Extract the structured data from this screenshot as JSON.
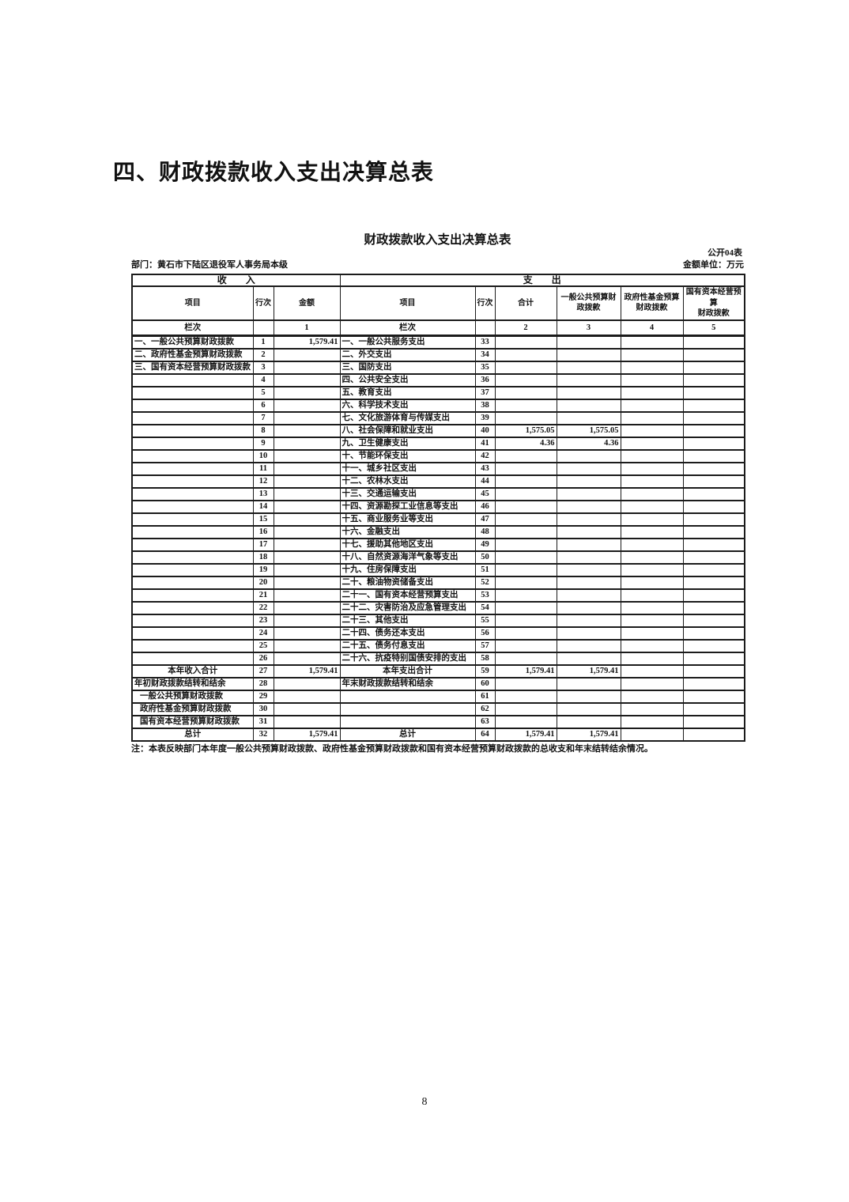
{
  "page": {
    "heading": "四、财政拨款收入支出决算总表",
    "page_number": "8"
  },
  "table": {
    "title": "财政拨款收入支出决算总表",
    "table_code": "公开04表",
    "department": "部门：黄石市下陆区退役军人事务局本级",
    "unit_label": "金额单位：万元",
    "income_band": "收　　入",
    "expense_band": "支　　出",
    "income_headers": [
      "项目",
      "行次",
      "金额"
    ],
    "expense_headers": [
      "项目",
      "行次",
      "合计",
      "一般公共预算财\n政拨款",
      "政府性基金预算\n财政拨款",
      "国有资本经营预算\n财政拨款"
    ],
    "column_index_row": [
      "栏次",
      "",
      "1",
      "栏次",
      "",
      "2",
      "3",
      "4",
      "5"
    ],
    "rows": [
      [
        "一、一般公共预算财政拨款",
        "1",
        "1,579.41",
        "一、一般公共服务支出",
        "33",
        "",
        "",
        "",
        ""
      ],
      [
        "二、政府性基金预算财政拨款",
        "2",
        "",
        "二、外交支出",
        "34",
        "",
        "",
        "",
        ""
      ],
      [
        "三、国有资本经营预算财政拨款",
        "3",
        "",
        "三、国防支出",
        "35",
        "",
        "",
        "",
        ""
      ],
      [
        "",
        "4",
        "",
        "四、公共安全支出",
        "36",
        "",
        "",
        "",
        ""
      ],
      [
        "",
        "5",
        "",
        "五、教育支出",
        "37",
        "",
        "",
        "",
        ""
      ],
      [
        "",
        "6",
        "",
        "六、科学技术支出",
        "38",
        "",
        "",
        "",
        ""
      ],
      [
        "",
        "7",
        "",
        "七、文化旅游体育与传媒支出",
        "39",
        "",
        "",
        "",
        ""
      ],
      [
        "",
        "8",
        "",
        "八、社会保障和就业支出",
        "40",
        "1,575.05",
        "1,575.05",
        "",
        ""
      ],
      [
        "",
        "9",
        "",
        "九、卫生健康支出",
        "41",
        "4.36",
        "4.36",
        "",
        ""
      ],
      [
        "",
        "10",
        "",
        "十、节能环保支出",
        "42",
        "",
        "",
        "",
        ""
      ],
      [
        "",
        "11",
        "",
        "十一、城乡社区支出",
        "43",
        "",
        "",
        "",
        ""
      ],
      [
        "",
        "12",
        "",
        "十二、农林水支出",
        "44",
        "",
        "",
        "",
        ""
      ],
      [
        "",
        "13",
        "",
        "十三、交通运输支出",
        "45",
        "",
        "",
        "",
        ""
      ],
      [
        "",
        "14",
        "",
        "十四、资源勘探工业信息等支出",
        "46",
        "",
        "",
        "",
        ""
      ],
      [
        "",
        "15",
        "",
        "十五、商业服务业等支出",
        "47",
        "",
        "",
        "",
        ""
      ],
      [
        "",
        "16",
        "",
        "十六、金融支出",
        "48",
        "",
        "",
        "",
        ""
      ],
      [
        "",
        "17",
        "",
        "十七、援助其他地区支出",
        "49",
        "",
        "",
        "",
        ""
      ],
      [
        "",
        "18",
        "",
        "十八、自然资源海洋气象等支出",
        "50",
        "",
        "",
        "",
        ""
      ],
      [
        "",
        "19",
        "",
        "十九、住房保障支出",
        "51",
        "",
        "",
        "",
        ""
      ],
      [
        "",
        "20",
        "",
        "二十、粮油物资储备支出",
        "52",
        "",
        "",
        "",
        ""
      ],
      [
        "",
        "21",
        "",
        "二十一、国有资本经营预算支出",
        "53",
        "",
        "",
        "",
        ""
      ],
      [
        "",
        "22",
        "",
        "二十二、灾害防治及应急管理支出",
        "54",
        "",
        "",
        "",
        ""
      ],
      [
        "",
        "23",
        "",
        "二十三、其他支出",
        "55",
        "",
        "",
        "",
        ""
      ],
      [
        "",
        "24",
        "",
        "二十四、债务还本支出",
        "56",
        "",
        "",
        "",
        ""
      ],
      [
        "",
        "25",
        "",
        "二十五、债务付息支出",
        "57",
        "",
        "",
        "",
        ""
      ],
      [
        "",
        "26",
        "",
        "二十六、抗疫特别国债安排的支出",
        "58",
        "",
        "",
        "",
        ""
      ],
      [
        "本年收入合计",
        "27",
        "1,579.41",
        "本年支出合计",
        "59",
        "1,579.41",
        "1,579.41",
        "",
        ""
      ],
      [
        "年初财政拨款结转和结余",
        "28",
        "",
        "年末财政拨款结转和结余",
        "60",
        "",
        "",
        "",
        ""
      ],
      [
        "一般公共预算财政拨款",
        "29",
        "",
        "",
        "61",
        "",
        "",
        "",
        ""
      ],
      [
        "政府性基金预算财政拨款",
        "30",
        "",
        "",
        "62",
        "",
        "",
        "",
        ""
      ],
      [
        "国有资本经营预算财政拨款",
        "31",
        "",
        "",
        "63",
        "",
        "",
        "",
        ""
      ],
      [
        "总计",
        "32",
        "1,579.41",
        "总计",
        "64",
        "1,579.41",
        "1,579.41",
        "",
        ""
      ]
    ],
    "centered_item_rows": [
      26,
      31
    ],
    "indented_item_rows": [
      28,
      29,
      30
    ],
    "note": "注：本表反映部门本年度一般公共预算财政拨款、政府性基金预算财政拨款和国有资本经营预算财政拨款的总收支和年末结转结余情况。"
  }
}
